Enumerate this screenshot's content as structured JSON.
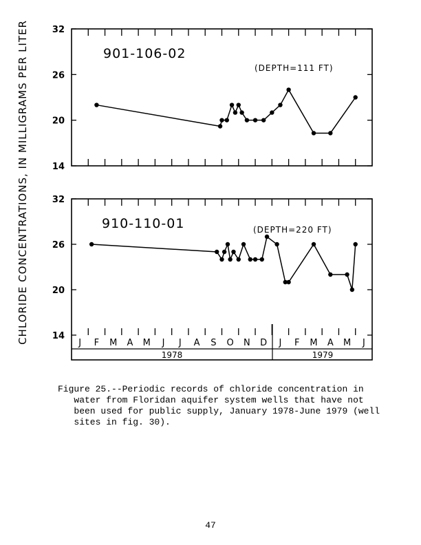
{
  "chart_data": [
    {
      "type": "line",
      "title": "901-106-02",
      "annotation": "(DEPTH=111 FT)",
      "ylabel": "CHLORIDE CONCENTRATIONS, IN MILLIGRAMS PER LITER",
      "ylim": [
        14,
        32
      ],
      "yticks": [
        14,
        20,
        26,
        32
      ],
      "xlim": [
        0,
        18
      ],
      "x": [
        1.5,
        8.9,
        9.0,
        9.3,
        9.6,
        9.8,
        10.0,
        10.2,
        10.5,
        11.0,
        11.5,
        12.0,
        12.5,
        13.0,
        14.5,
        15.5,
        17.0
      ],
      "y": [
        22,
        19.2,
        20,
        20,
        22,
        21,
        22,
        21,
        20,
        20,
        20,
        21,
        22,
        24,
        18.3,
        18.3,
        23
      ]
    },
    {
      "type": "line",
      "title": "910-110-01",
      "annotation": "(DEPTH=220 FT)",
      "ylabel": "CHLORIDE CONCENTRATIONS, IN MILLIGRAMS PER LITER",
      "ylim": [
        14,
        32
      ],
      "yticks": [
        14,
        20,
        26,
        32
      ],
      "xlim": [
        0,
        18
      ],
      "x": [
        1.2,
        8.7,
        9.0,
        9.15,
        9.35,
        9.5,
        9.7,
        10.0,
        10.3,
        10.7,
        11.0,
        11.4,
        11.7,
        12.3,
        12.8,
        13.0,
        14.5,
        15.5,
        16.5,
        16.8,
        17.0
      ],
      "y": [
        26,
        25,
        24,
        25,
        26,
        24,
        25,
        24,
        26,
        24,
        24,
        24,
        27,
        26,
        21,
        21,
        26,
        22,
        22,
        20,
        26
      ],
      "months": [
        "J",
        "F",
        "M",
        "A",
        "M",
        "J",
        "J",
        "A",
        "S",
        "O",
        "N",
        "D",
        "J",
        "F",
        "M",
        "A",
        "M",
        "J"
      ],
      "years": [
        "1978",
        "1979"
      ]
    }
  ],
  "caption": "Figure 25.--Periodic records of chloride concentration in\n   water from Floridan aquifer system wells that have not\n   been used for public supply, January 1978-June 1979 (well\n   sites in fig. 30).",
  "page_number": "47"
}
